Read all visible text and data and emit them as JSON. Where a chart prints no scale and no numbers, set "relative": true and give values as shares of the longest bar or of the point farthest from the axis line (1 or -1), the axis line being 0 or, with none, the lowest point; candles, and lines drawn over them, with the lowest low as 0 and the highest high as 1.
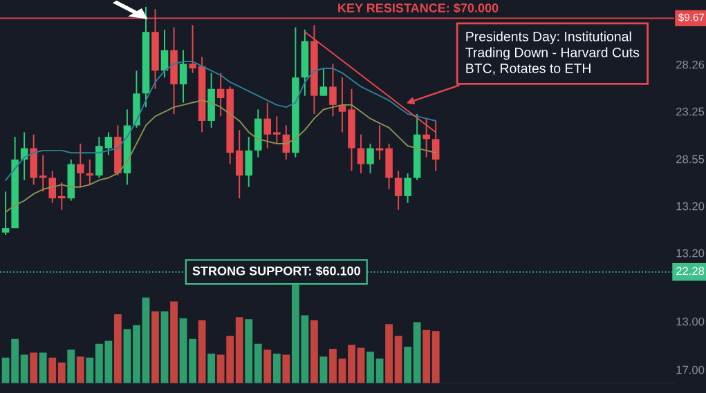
{
  "chart_data": [
    {
      "type": "candlestick",
      "relative": true,
      "categories": [
        null,
        null,
        null,
        null,
        null,
        null,
        null,
        null,
        null,
        null,
        null,
        null,
        null,
        null,
        null,
        null,
        null,
        null,
        null,
        null,
        null,
        null,
        null,
        null,
        null,
        null,
        null,
        null,
        null,
        null,
        null,
        null,
        null,
        null,
        null,
        null,
        null,
        null,
        null,
        null,
        null,
        null,
        null,
        null,
        null,
        null,
        null
      ],
      "ohlc": [
        [
          0.01,
          0.19,
          0,
          0.03
        ],
        [
          0.03,
          0.43,
          0.03,
          0.33
        ],
        [
          0.33,
          0.45,
          0.24,
          0.38
        ],
        [
          0.38,
          0.44,
          0.22,
          0.25
        ],
        [
          0.26,
          0.35,
          0.19,
          0.25
        ],
        [
          0.25,
          0.28,
          0.14,
          0.16
        ],
        [
          0.17,
          0.23,
          0.11,
          0.16
        ],
        [
          0.16,
          0.33,
          0.15,
          0.31
        ],
        [
          0.31,
          0.4,
          0.21,
          0.27
        ],
        [
          0.27,
          0.33,
          0.22,
          0.26
        ],
        [
          0.26,
          0.43,
          0.25,
          0.39
        ],
        [
          0.38,
          0.45,
          0.35,
          0.43
        ],
        [
          0.43,
          0.48,
          0.26,
          0.27
        ],
        [
          0.27,
          0.55,
          0.22,
          0.48
        ],
        [
          0.48,
          0.72,
          0.47,
          0.62
        ],
        [
          0.62,
          1.0,
          0.56,
          0.89
        ],
        [
          0.89,
          0.99,
          0.64,
          0.72
        ],
        [
          0.72,
          0.9,
          0.69,
          0.81
        ],
        [
          0.81,
          0.91,
          0.53,
          0.66
        ],
        [
          0.66,
          0.81,
          0.58,
          0.75
        ],
        [
          0.75,
          0.92,
          0.71,
          0.73
        ],
        [
          0.74,
          0.78,
          0.45,
          0.5
        ],
        [
          0.5,
          0.71,
          0.47,
          0.64
        ],
        [
          0.64,
          0.71,
          0.52,
          0.6
        ],
        [
          0.64,
          0.65,
          0.31,
          0.36
        ],
        [
          0.37,
          0.46,
          0.16,
          0.26
        ],
        [
          0.26,
          0.43,
          0.21,
          0.37
        ],
        [
          0.37,
          0.55,
          0.34,
          0.51
        ],
        [
          0.51,
          0.58,
          0.38,
          0.44
        ],
        [
          0.45,
          0.52,
          0.4,
          0.44
        ],
        [
          0.44,
          0.48,
          0.33,
          0.36
        ],
        [
          0.36,
          0.91,
          0.34,
          0.69
        ],
        [
          0.69,
          0.9,
          0.61,
          0.85
        ],
        [
          0.85,
          0.92,
          0.53,
          0.61
        ],
        [
          0.61,
          0.73,
          0.61,
          0.65
        ],
        [
          0.65,
          0.75,
          0.52,
          0.57
        ],
        [
          0.57,
          0.69,
          0.45,
          0.54
        ],
        [
          0.55,
          0.64,
          0.28,
          0.38
        ],
        [
          0.38,
          0.44,
          0.27,
          0.31
        ],
        [
          0.31,
          0.4,
          0.27,
          0.38
        ],
        [
          0.38,
          0.48,
          0.33,
          0.37
        ],
        [
          0.38,
          0.4,
          0.2,
          0.25
        ],
        [
          0.25,
          0.28,
          0.11,
          0.17
        ],
        [
          0.17,
          0.27,
          0.14,
          0.25
        ],
        [
          0.25,
          0.53,
          0.24,
          0.44
        ],
        [
          0.44,
          0.51,
          0.34,
          0.42
        ],
        [
          0.42,
          0.5,
          0.28,
          0.33
        ]
      ],
      "colors": [
        "#2ecc7a",
        "#2ecc7a",
        "#2ecc7a",
        "#e5484d",
        "#e5484d",
        "#e5484d",
        "#e5484d",
        "#2ecc7a",
        "#e5484d",
        "#e5484d",
        "#2ecc7a",
        "#2ecc7a",
        "#e5484d",
        "#2ecc7a",
        "#2ecc7a",
        "#2ecc7a",
        "#e5484d",
        "#2ecc7a",
        "#e5484d",
        "#2ecc7a",
        "#e5484d",
        "#e5484d",
        "#2ecc7a",
        "#e5484d",
        "#e5484d",
        "#e5484d",
        "#2ecc7a",
        "#2ecc7a",
        "#e5484d",
        "#e5484d",
        "#e5484d",
        "#2ecc7a",
        "#2ecc7a",
        "#e5484d",
        "#2ecc7a",
        "#e5484d",
        "#e5484d",
        "#e5484d",
        "#e5484d",
        "#2ecc7a",
        "#e5484d",
        "#e5484d",
        "#e5484d",
        "#2ecc7a",
        "#2ecc7a",
        "#e5484d",
        "#e5484d"
      ],
      "series": [
        {
          "type": "line",
          "color": "#2f7f9a",
          "values": [
            0.24,
            0.29,
            0.34,
            0.36,
            0.37,
            0.37,
            0.37,
            0.36,
            0.36,
            0.36,
            0.36,
            0.37,
            0.38,
            0.43,
            0.5,
            0.59,
            0.67,
            0.72,
            0.75,
            0.76,
            0.76,
            0.74,
            0.72,
            0.7,
            0.67,
            0.65,
            0.63,
            0.61,
            0.59,
            0.57,
            0.56,
            0.58,
            0.67,
            0.72,
            0.73,
            0.73,
            0.71,
            0.68,
            0.65,
            0.63,
            0.61,
            0.59,
            0.56,
            0.53,
            0.52,
            0.51,
            0.5
          ]
        },
        {
          "type": "line",
          "color": "#8d9150",
          "values": [
            0.1,
            0.13,
            0.15,
            0.18,
            0.2,
            0.21,
            0.22,
            0.21,
            0.21,
            0.22,
            0.24,
            0.25,
            0.27,
            0.32,
            0.4,
            0.48,
            0.52,
            0.54,
            0.56,
            0.57,
            0.58,
            0.59,
            0.58,
            0.56,
            0.53,
            0.5,
            0.45,
            0.42,
            0.41,
            0.4,
            0.4,
            0.42,
            0.46,
            0.51,
            0.55,
            0.56,
            0.57,
            0.57,
            0.54,
            0.51,
            0.49,
            0.47,
            0.43,
            0.39,
            0.38,
            0.37,
            0.36
          ]
        },
        {
          "type": "line",
          "color": "#e5484d",
          "values": [
            null,
            null,
            null,
            null,
            null,
            null,
            null,
            null,
            null,
            null,
            null,
            null,
            null,
            null,
            null,
            null,
            null,
            null,
            null,
            null,
            null,
            null,
            null,
            null,
            null,
            null,
            null,
            null,
            null,
            null,
            null,
            null,
            0.89,
            null,
            null,
            null,
            null,
            null,
            null,
            null,
            null,
            null,
            null,
            null,
            null,
            null,
            0.45
          ]
        }
      ],
      "ref_lines": [
        {
          "axis": "y",
          "value": 0.95,
          "color": "#e5484d",
          "line_style": "solid"
        }
      ],
      "annotations": [
        "Presidents Day: Institutional\nTrading Down - Harvard Cuts\nBTC, Rotates to ETH",
        "KEY RESISTANCE: $70.000",
        "$9.67",
        "28.26",
        "23.25",
        "28.55",
        "13.20",
        "13.20"
      ]
    },
    {
      "type": "bar",
      "relative": true,
      "categories": [
        null,
        null,
        null,
        null,
        null,
        null,
        null,
        null,
        null,
        null,
        null,
        null,
        null,
        null,
        null,
        null,
        null,
        null,
        null,
        null,
        null,
        null,
        null,
        null,
        null,
        null,
        null,
        null,
        null,
        null,
        null,
        null,
        null,
        null,
        null,
        null,
        null,
        null,
        null,
        null,
        null,
        null,
        null,
        null,
        null,
        null,
        null
      ],
      "values": [
        0.26,
        0.45,
        0.29,
        0.31,
        0.31,
        0.26,
        0.21,
        0.34,
        0.27,
        0.26,
        0.4,
        0.43,
        0.7,
        0.55,
        0.59,
        0.87,
        0.73,
        0.73,
        0.83,
        0.66,
        0.45,
        0.64,
        0.3,
        0.29,
        0.48,
        0.67,
        0.65,
        0.4,
        0.34,
        0.3,
        0.29,
        1.0,
        0.69,
        0.64,
        0.27,
        0.35,
        0.25,
        0.39,
        0.36,
        0.32,
        0.25,
        0.6,
        0.48,
        0.37,
        0.62,
        0.54,
        0.53
      ],
      "colors": [
        "#2e9e6e",
        "#2e9e6e",
        "#2e9e6e",
        "#c4443f",
        "#2e9e6e",
        "#c4443f",
        "#c4443f",
        "#2e9e6e",
        "#c4443f",
        "#2e9e6e",
        "#2e9e6e",
        "#2e9e6e",
        "#c4443f",
        "#2e9e6e",
        "#2e9e6e",
        "#2e9e6e",
        "#c4443f",
        "#2e9e6e",
        "#c4443f",
        "#2e9e6e",
        "#2e9e6e",
        "#c4443f",
        "#2e9e6e",
        "#c4443f",
        "#c4443f",
        "#c4443f",
        "#2e9e6e",
        "#2e9e6e",
        "#c4443f",
        "#2e9e6e",
        "#c4443f",
        "#2e9e6e",
        "#2e9e6e",
        "#c4443f",
        "#2e9e6e",
        "#c4443f",
        "#c4443f",
        "#c4443f",
        "#c4443f",
        "#2e9e6e",
        "#2e9e6e",
        "#c4443f",
        "#c4443f",
        "#2e9e6e",
        "#2e9e6e",
        "#c4443f",
        "#c4443f"
      ],
      "ref_lines": [
        {
          "axis": "y",
          "value": 1.13,
          "color": "#3fbf8a",
          "line_style": "dotted"
        }
      ],
      "annotations": [
        "STRONG SUPPORT: $60.100",
        "22.28",
        "13.00",
        "17.00"
      ]
    }
  ]
}
